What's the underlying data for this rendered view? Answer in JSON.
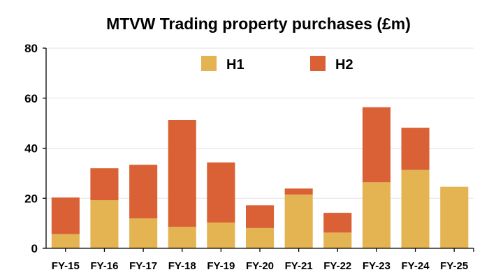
{
  "chart_data": {
    "type": "bar",
    "stacked": true,
    "title": "MTVW Trading property purchases (£m)",
    "xlabel": "",
    "ylabel": "",
    "categories": [
      "FY-15",
      "FY-16",
      "FY-17",
      "FY-18",
      "FY-19",
      "FY-20",
      "FY-21",
      "FY-22",
      "FY-23",
      "FY-24",
      "FY-25"
    ],
    "series": [
      {
        "name": "H1",
        "color": "#E3B451",
        "values": [
          5.7,
          19.2,
          12.0,
          8.6,
          10.3,
          8.1,
          21.5,
          6.3,
          26.4,
          31.3,
          24.6
        ]
      },
      {
        "name": "H2",
        "color": "#DA6135",
        "values": [
          14.6,
          12.8,
          21.4,
          42.7,
          24.0,
          9.1,
          2.4,
          7.9,
          30.0,
          16.9,
          0
        ]
      }
    ],
    "ylim": [
      0,
      80
    ],
    "yticks": [
      "0",
      "20",
      "40",
      "60",
      "80"
    ],
    "grid": true,
    "legend": {
      "position": "top-center"
    }
  }
}
